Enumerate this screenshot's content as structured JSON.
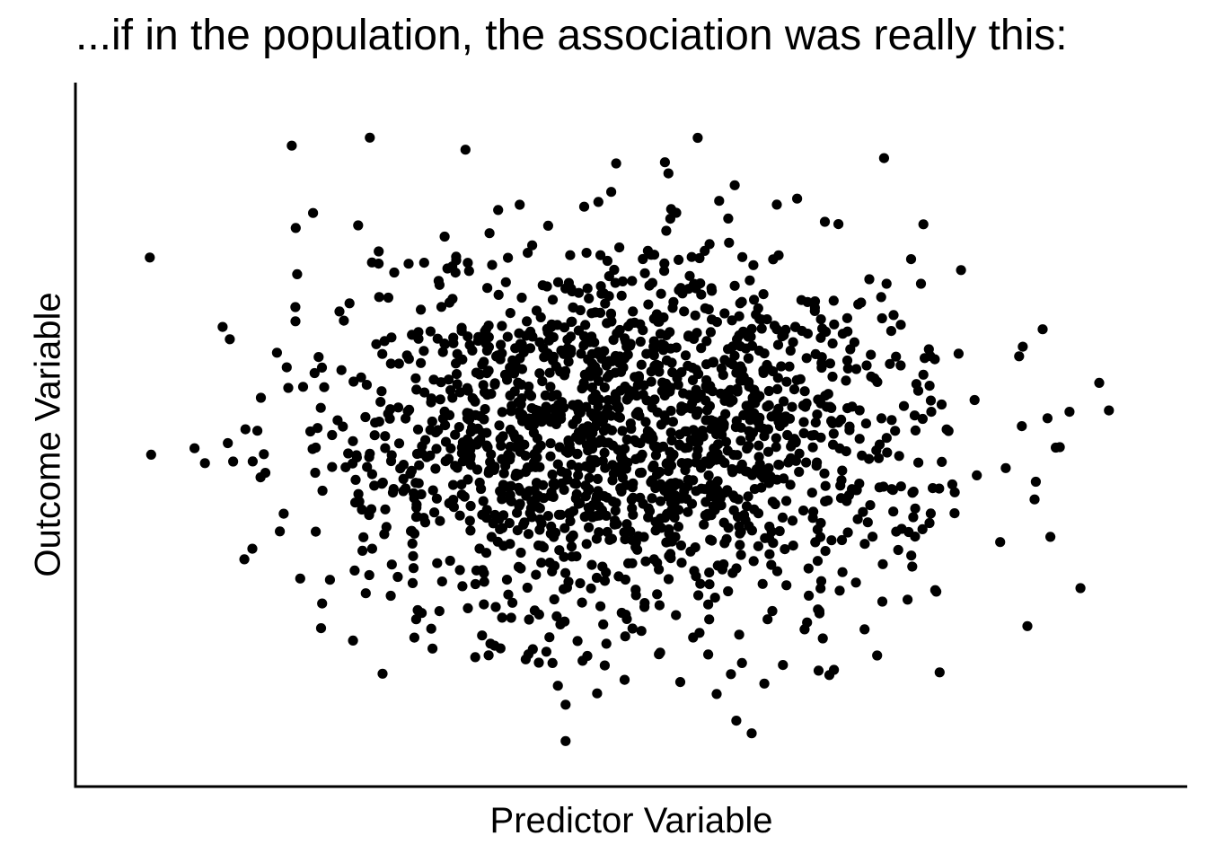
{
  "chart_data": {
    "type": "scatter",
    "title": "...if in the population, the association was really this:",
    "xlabel": "Predictor Variable",
    "ylabel": "Outcome Variable",
    "xlim": [
      -3.6,
      3.6
    ],
    "ylim": [
      -3.6,
      3.6
    ],
    "grid": false,
    "legend": "none",
    "correlation": 0,
    "n_points": 1700,
    "random_seed": 20240517,
    "distribution": "bivariate normal, mean 0, sd 1, uncorrelated",
    "point_color": "#000000",
    "axis_color": "#000000",
    "fixed_points": [
      {
        "x": -1.71,
        "y": 3.1
      },
      {
        "x": -0.43,
        "y": -3.2
      },
      {
        "x": -0.43,
        "y": -2.82
      },
      {
        "x": -1.71,
        "y": -0.2
      },
      {
        "x": -1.88,
        "y": 1.19
      },
      {
        "x": 3.06,
        "y": 0.54
      },
      {
        "x": 2.69,
        "y": 1.1
      },
      {
        "x": 2.59,
        "y": -2.0
      },
      {
        "x": -3.14,
        "y": -0.21
      },
      {
        "x": 0.87,
        "y": -2.6
      }
    ]
  }
}
